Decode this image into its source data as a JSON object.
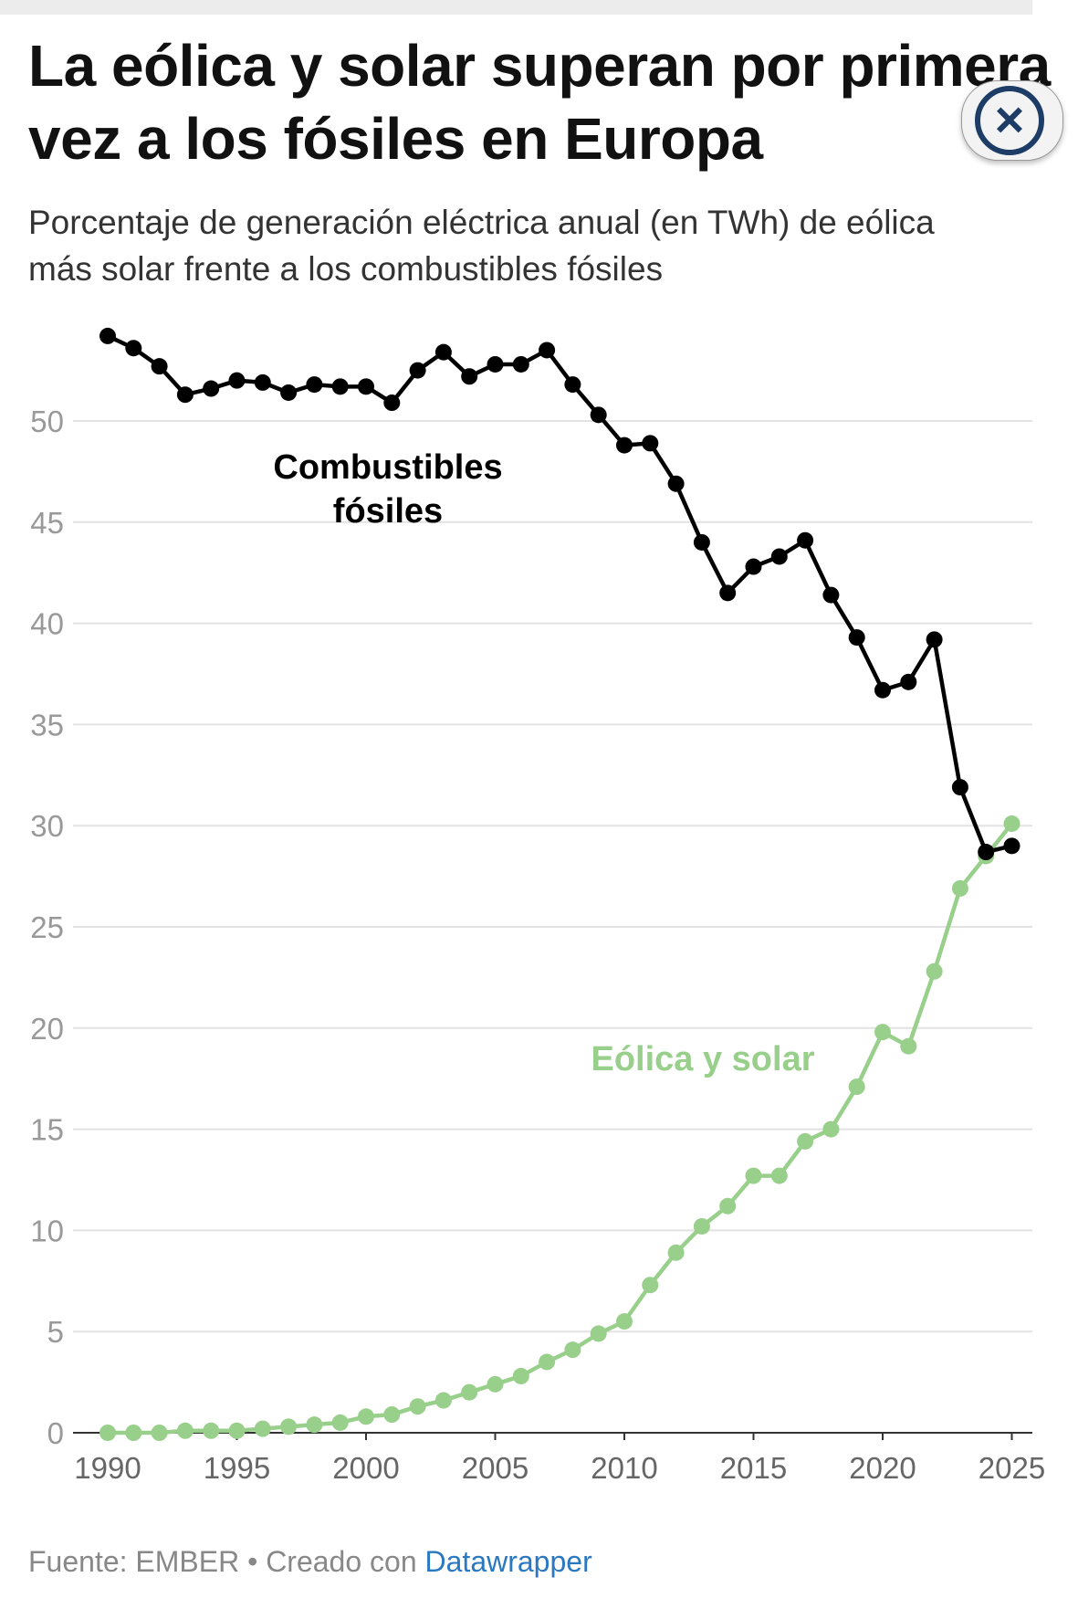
{
  "title_lines": [
    "La eólica y solar superan por primera",
    "vez a los fósiles en Europa"
  ],
  "subtitle_lines": [
    "Porcentaje de generación eléctrica anual (en TWh) de eólica",
    "más solar frente a los combustibles fósiles"
  ],
  "footer": {
    "source": "Fuente: EMBER • Creado con ",
    "link": "Datawrapper"
  },
  "close_icon": "×",
  "chart_data": {
    "type": "line",
    "title": "La eólica y solar superan por primera vez a los fósiles en Europa",
    "xlabel": "",
    "ylabel": "",
    "x": [
      1990,
      1991,
      1992,
      1993,
      1994,
      1995,
      1996,
      1997,
      1998,
      1999,
      2000,
      2001,
      2002,
      2003,
      2004,
      2005,
      2006,
      2007,
      2008,
      2009,
      2010,
      2011,
      2012,
      2013,
      2014,
      2015,
      2016,
      2017,
      2018,
      2019,
      2020,
      2021,
      2022,
      2023,
      2024,
      2025
    ],
    "ylim": [
      0,
      55
    ],
    "y_ticks": [
      0,
      5,
      10,
      15,
      20,
      25,
      30,
      35,
      40,
      45,
      50
    ],
    "x_ticks": [
      {
        "v": 1990,
        "label": "1990"
      },
      {
        "v": 1995,
        "label": "1995"
      },
      {
        "v": 2000,
        "label": "2000"
      },
      {
        "v": 2005,
        "label": "2005"
      },
      {
        "v": 2010,
        "label": "2010"
      },
      {
        "v": 2015,
        "label": "2015"
      },
      {
        "v": 2020,
        "label": "2020"
      },
      {
        "v": 2025,
        "label": "2025"
      }
    ],
    "grid": true,
    "series": [
      {
        "name": "Combustibles fósiles",
        "label_lines": [
          "Combustibles",
          "fósiles"
        ],
        "color": "#000000",
        "values": [
          54.2,
          53.6,
          52.7,
          51.3,
          51.6,
          52.0,
          51.9,
          51.4,
          51.8,
          51.7,
          51.7,
          50.9,
          52.5,
          53.4,
          52.2,
          52.8,
          52.8,
          53.5,
          51.8,
          50.3,
          48.8,
          48.9,
          46.9,
          44.0,
          41.5,
          42.8,
          43.3,
          44.1,
          41.4,
          39.3,
          36.7,
          37.1,
          39.2,
          31.9,
          28.7,
          29.0
        ]
      },
      {
        "name": "Eólica y solar",
        "label_lines": [
          "Eólica y solar"
        ],
        "color": "#98cf8a",
        "values": [
          0,
          0,
          0,
          0.1,
          0.1,
          0.1,
          0.2,
          0.3,
          0.4,
          0.5,
          0.8,
          0.9,
          1.3,
          1.6,
          2.0,
          2.4,
          2.8,
          3.5,
          4.1,
          4.9,
          5.5,
          7.3,
          8.9,
          10.2,
          11.2,
          12.7,
          12.7,
          14.4,
          15.0,
          17.1,
          19.8,
          19.1,
          22.8,
          26.9,
          28.5,
          30.1
        ]
      }
    ]
  }
}
